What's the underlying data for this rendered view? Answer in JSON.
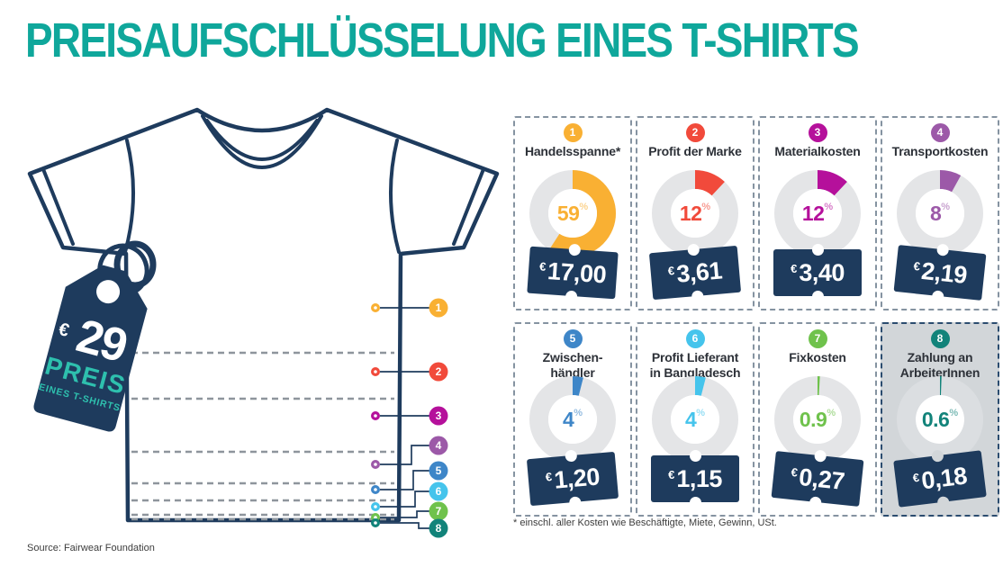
{
  "title": "PREISAUFSCHLÜSSELUNG EINES T-SHIRTS",
  "hangtag": {
    "currency": "€",
    "amount": "29",
    "caption1": "PREIS",
    "caption2": "EINES T-SHIRTS"
  },
  "cards": {
    "percent_symbol": "%",
    "items": [
      {
        "number": "1",
        "label_lines": [
          "Handelsspanne*"
        ],
        "percent": 59,
        "percent_label": "59",
        "currency": "€",
        "amount": "17,00",
        "color": "#F9B033",
        "highlighted": false
      },
      {
        "number": "2",
        "label_lines": [
          "Profit der Marke"
        ],
        "percent": 12,
        "percent_label": "12",
        "currency": "€",
        "amount": "3,61",
        "color": "#F14A3B",
        "highlighted": false
      },
      {
        "number": "3",
        "label_lines": [
          "Materialkosten"
        ],
        "percent": 12,
        "percent_label": "12",
        "currency": "€",
        "amount": "3,40",
        "color": "#B5109B",
        "highlighted": false
      },
      {
        "number": "4",
        "label_lines": [
          "Transportkosten"
        ],
        "percent": 8,
        "percent_label": "8",
        "currency": "€",
        "amount": "2,19",
        "color": "#9C59A8",
        "highlighted": false
      },
      {
        "number": "5",
        "label_lines": [
          "Zwischen-",
          "händler"
        ],
        "percent": 4,
        "percent_label": "4",
        "currency": "€",
        "amount": "1,20",
        "color": "#3E86C8",
        "highlighted": false
      },
      {
        "number": "6",
        "label_lines": [
          "Profit Lieferant",
          "in Bangladesch"
        ],
        "percent": 4,
        "percent_label": "4",
        "currency": "€",
        "amount": "1,15",
        "color": "#45C4EC",
        "highlighted": false
      },
      {
        "number": "7",
        "label_lines": [
          "Fixkosten"
        ],
        "percent": 0.9,
        "percent_label": "0.9",
        "currency": "€",
        "amount": "0,27",
        "color": "#6FC24C",
        "highlighted": false
      },
      {
        "number": "8",
        "label_lines": [
          "Zahlung an",
          "ArbeiterInnen"
        ],
        "percent": 0.6,
        "percent_label": "0.6",
        "currency": "€",
        "amount": "0,18",
        "color": "#12837A",
        "highlighted": true
      }
    ]
  },
  "footnote": "* einschl. aller Kosten wie Beschäftigte, Miete, Gewinn, USt.",
  "source": "Source: Fairwear Foundation",
  "colors": {
    "teal": "#0FA79B",
    "navy": "#1E3B5D",
    "tag_teal": "#2EC0AE",
    "card_border": "#8593A1",
    "highlight_border": "#2B4C6F",
    "highlight_bg": "#D2D6D9",
    "ring_gray": "#E4E5E7",
    "ring_gray_highlight": "#DBDEE1",
    "divider_gray": "#8E959C",
    "text_dark": "#2D3138",
    "note_gray": "#3C3C3C"
  },
  "chart_data": {
    "type": "pie",
    "title": "PREISAUFSCHLÜSSELUNG EINES T-SHIRTS",
    "total_price": "€29",
    "categories": [
      "Handelsspanne*",
      "Profit der Marke",
      "Materialkosten",
      "Transportkosten",
      "Zwischenhändler",
      "Profit Lieferant in Bangladesch",
      "Fixkosten",
      "Zahlung an ArbeiterInnen"
    ],
    "values_percent": [
      59,
      12,
      12,
      8,
      4,
      4,
      0.9,
      0.6
    ],
    "values_eur": [
      17.0,
      3.61,
      3.4,
      2.19,
      1.2,
      1.15,
      0.27,
      0.18
    ],
    "legend_position": "none",
    "notes": "each category rendered as its own donut chart; segment widths also shown as dashed divisions of the t-shirt"
  }
}
